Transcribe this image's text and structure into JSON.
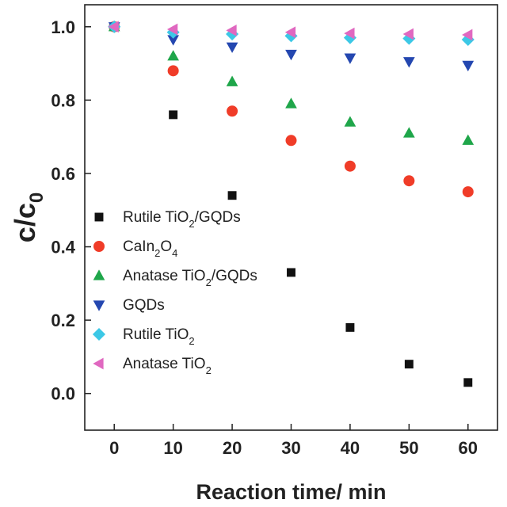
{
  "chart_data": {
    "type": "scatter",
    "xlabel": "Reaction time/ min",
    "ylabel": {
      "base": "c/c",
      "sub": "0"
    },
    "xlim": [
      -5,
      65
    ],
    "ylim": [
      -0.1,
      1.06
    ],
    "xticks": [
      0,
      10,
      20,
      30,
      40,
      50,
      60
    ],
    "xtick_labels": [
      "0",
      "10",
      "20",
      "30",
      "40",
      "50",
      "60"
    ],
    "yticks": [
      0.0,
      0.2,
      0.4,
      0.6,
      0.8,
      1.0
    ],
    "ytick_labels": [
      "0.0",
      "0.2",
      "0.4",
      "0.6",
      "0.8",
      "1.0"
    ],
    "legend_position": "lower-left",
    "series": [
      {
        "name": "Rutile TiO2/GQDs",
        "name_parts": [
          [
            "Rutile TiO",
            false
          ],
          [
            "2",
            true
          ],
          [
            "/GQDs",
            false
          ]
        ],
        "marker": "square",
        "color": "#111111",
        "x": [
          0,
          10,
          20,
          30,
          40,
          50,
          60
        ],
        "y": [
          1.0,
          0.76,
          0.54,
          0.33,
          0.18,
          0.08,
          0.03
        ]
      },
      {
        "name": "CaIn2O4",
        "name_parts": [
          [
            "CaIn",
            false
          ],
          [
            "2",
            true
          ],
          [
            "O",
            false
          ],
          [
            "4",
            true
          ]
        ],
        "marker": "circle",
        "color": "#f03c28",
        "x": [
          0,
          10,
          20,
          30,
          40,
          50,
          60
        ],
        "y": [
          1.0,
          0.88,
          0.77,
          0.69,
          0.62,
          0.58,
          0.55
        ]
      },
      {
        "name": "Anatase TiO2/GQDs",
        "name_parts": [
          [
            "Anatase TiO",
            false
          ],
          [
            "2",
            true
          ],
          [
            "/GQDs",
            false
          ]
        ],
        "marker": "triangle-up",
        "color": "#1fa64a",
        "x": [
          0,
          10,
          20,
          30,
          40,
          50,
          60
        ],
        "y": [
          1.0,
          0.92,
          0.85,
          0.79,
          0.74,
          0.71,
          0.69
        ]
      },
      {
        "name": "GQDs",
        "name_parts": [
          [
            "GQDs",
            false
          ]
        ],
        "marker": "triangle-down",
        "color": "#2447b0",
        "x": [
          0,
          10,
          20,
          30,
          40,
          50,
          60
        ],
        "y": [
          1.0,
          0.965,
          0.945,
          0.925,
          0.915,
          0.905,
          0.895
        ]
      },
      {
        "name": "Rutile TiO2",
        "name_parts": [
          [
            "Rutile TiO",
            false
          ],
          [
            "2",
            true
          ]
        ],
        "marker": "diamond",
        "color": "#3cc8e6",
        "x": [
          0,
          10,
          20,
          30,
          40,
          50,
          60
        ],
        "y": [
          1.0,
          0.985,
          0.98,
          0.975,
          0.97,
          0.968,
          0.965
        ]
      },
      {
        "name": "Anatase TiO2",
        "name_parts": [
          [
            "Anatase TiO",
            false
          ],
          [
            "2",
            true
          ]
        ],
        "marker": "triangle-left",
        "color": "#e068c0",
        "x": [
          0,
          10,
          20,
          30,
          40,
          50,
          60
        ],
        "y": [
          1.0,
          0.993,
          0.99,
          0.985,
          0.982,
          0.98,
          0.978
        ]
      }
    ]
  }
}
